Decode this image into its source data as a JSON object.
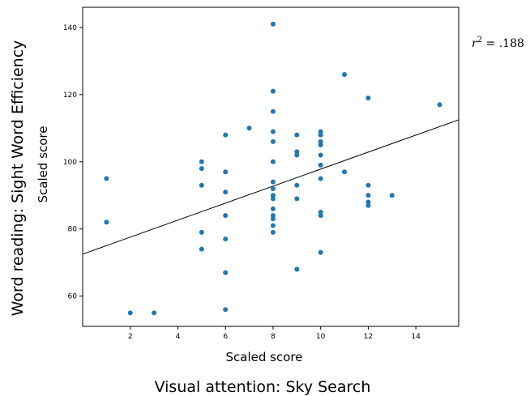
{
  "chart_data": {
    "type": "scatter",
    "xlabel": "Scaled score",
    "ylabel": "Scaled score",
    "outer_xlabel": "Visual attention: Sky Search",
    "outer_ylabel": "Word reading: Sight Word Efficiency",
    "annotation": {
      "r_symbol": "r",
      "r_exp": "2",
      "r_value": " = .188"
    },
    "xlim": [
      0,
      15.8
    ],
    "ylim": [
      51,
      146
    ],
    "xticks": [
      2,
      4,
      6,
      8,
      10,
      12,
      14
    ],
    "yticks": [
      60,
      80,
      100,
      120,
      140
    ],
    "point_color": "#1f77b4",
    "fit_line": {
      "x": [
        0,
        15.8
      ],
      "y": [
        72.5,
        112.5
      ]
    },
    "points": [
      [
        1,
        95
      ],
      [
        1,
        82
      ],
      [
        2,
        55
      ],
      [
        3,
        55
      ],
      [
        5,
        100
      ],
      [
        5,
        98
      ],
      [
        5,
        93
      ],
      [
        5,
        79
      ],
      [
        5,
        74
      ],
      [
        6,
        108
      ],
      [
        6,
        97
      ],
      [
        6,
        91
      ],
      [
        6,
        84
      ],
      [
        6,
        77
      ],
      [
        6,
        67
      ],
      [
        6,
        56
      ],
      [
        7,
        110
      ],
      [
        8,
        141
      ],
      [
        8,
        121
      ],
      [
        8,
        115
      ],
      [
        8,
        109
      ],
      [
        8,
        106
      ],
      [
        8,
        100
      ],
      [
        8,
        94
      ],
      [
        8,
        92
      ],
      [
        8,
        90
      ],
      [
        8,
        89
      ],
      [
        8,
        86
      ],
      [
        8,
        84
      ],
      [
        8,
        83
      ],
      [
        8,
        81
      ],
      [
        8,
        79
      ],
      [
        9,
        108
      ],
      [
        9,
        103
      ],
      [
        9,
        102
      ],
      [
        9,
        93
      ],
      [
        9,
        89
      ],
      [
        9,
        68
      ],
      [
        10,
        109
      ],
      [
        10,
        108
      ],
      [
        10,
        106
      ],
      [
        10,
        105
      ],
      [
        10,
        102
      ],
      [
        10,
        99
      ],
      [
        10,
        95
      ],
      [
        10,
        85
      ],
      [
        10,
        84
      ],
      [
        10,
        73
      ],
      [
        11,
        126
      ],
      [
        11,
        97
      ],
      [
        12,
        119
      ],
      [
        12,
        93
      ],
      [
        12,
        90
      ],
      [
        12,
        88
      ],
      [
        12,
        87
      ],
      [
        13,
        90
      ],
      [
        15,
        117
      ]
    ]
  }
}
